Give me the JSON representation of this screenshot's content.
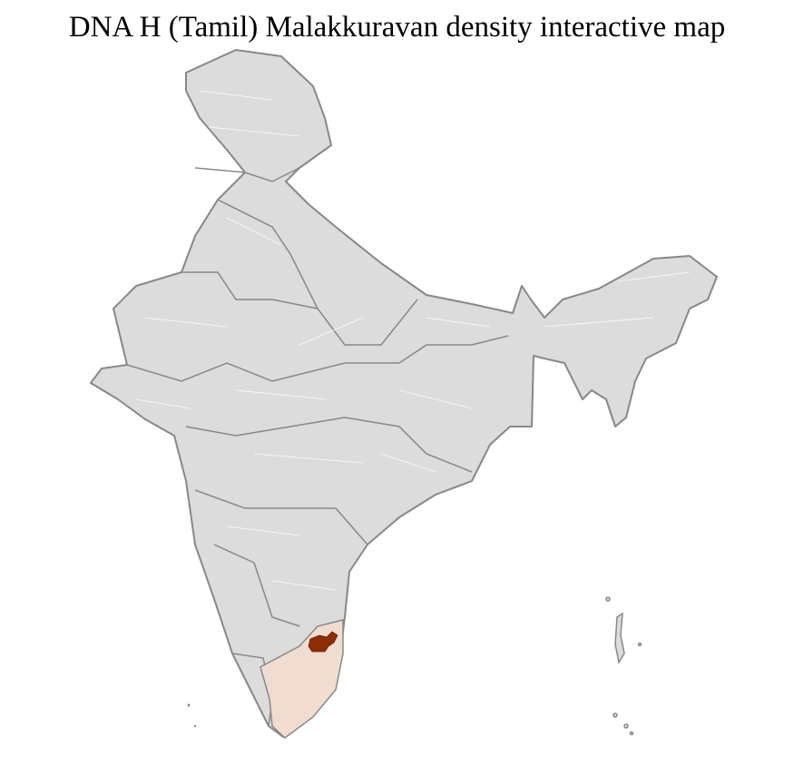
{
  "title": "DNA H (Tamil) Malakkuravan density interactive map",
  "colors": {
    "land": "#dcdcdc",
    "border": "#888888",
    "district_lines": "#ffffff",
    "state_highlight": "#f0dcd0",
    "district_highlight": "#8b2e05"
  },
  "highlighted_state": "Tamil Nadu"
}
